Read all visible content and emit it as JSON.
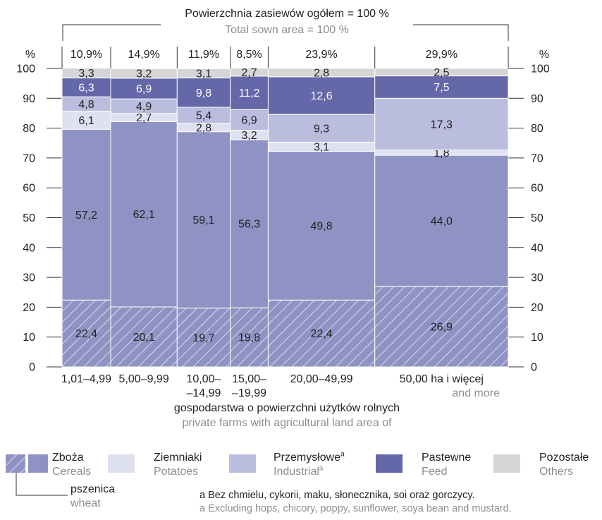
{
  "chart_data": {
    "type": "bar",
    "title": "Powierzchnia zasiewów ogółem = 100 %",
    "subtitle": "Total sown area = 100 %",
    "ylabel_left": "%",
    "ylabel_right": "%",
    "ylim": [
      0,
      100
    ],
    "yticks": [
      "0",
      "10",
      "20",
      "30",
      "40",
      "50",
      "60",
      "70",
      "80",
      "90",
      "100"
    ],
    "xlabel": "gospodarstwa o powierzchni użytków rolnych",
    "xlabel_en": "private farms with agricultural land area of",
    "categories": [
      {
        "l1": "1,01–4,99",
        "l2": "",
        "share": 10.9,
        "share_label": "10,9%"
      },
      {
        "l1": "5,00–9,99",
        "l2": "",
        "share": 14.9,
        "share_label": "14,9%"
      },
      {
        "l1": "10,00–",
        "l2": "–14,99",
        "share": 11.9,
        "share_label": "11,9%"
      },
      {
        "l1": "15,00–",
        "l2": "–19,99",
        "share": 8.5,
        "share_label": "8,5%"
      },
      {
        "l1": "20,00–49,99",
        "l2": "",
        "share": 23.9,
        "share_label": "23,9%"
      },
      {
        "l1": "50,00 ha i więcej",
        "l2": "and more",
        "share": 29.9,
        "share_label": "29,9%"
      }
    ],
    "series": [
      {
        "name": "pszenica",
        "name_en": "wheat",
        "color": "#8f93c4",
        "hatch": true,
        "values": [
          22.4,
          20.1,
          19.7,
          19.8,
          22.4,
          26.9
        ],
        "labels": [
          "22,4",
          "20,1",
          "19,7",
          "19,8",
          "22,4",
          "26,9"
        ]
      },
      {
        "name": "Zboża",
        "name_en": "Cereals",
        "color": "#8f93c4",
        "hatch": false,
        "values": [
          57.2,
          62.1,
          59.1,
          56.3,
          49.8,
          44.0
        ],
        "labels": [
          "57,2",
          "62,1",
          "59,1",
          "56,3",
          "49,8",
          "44,0"
        ]
      },
      {
        "name": "Ziemniaki",
        "name_en": "Potatoes",
        "color": "#dfe1f1",
        "hatch": false,
        "values": [
          6.1,
          2.7,
          2.8,
          3.2,
          3.1,
          1.8
        ],
        "labels": [
          "6,1",
          "2,7",
          "2,8",
          "3,2",
          "3,1",
          "1,8"
        ]
      },
      {
        "name": "Przemysłowe",
        "name_en": "Industrial",
        "color": "#babdde",
        "hatch": false,
        "values": [
          4.8,
          4.9,
          5.4,
          6.9,
          9.3,
          17.3
        ],
        "labels": [
          "4,8",
          "4,9",
          "5,4",
          "6,9",
          "9,3",
          "17,3"
        ]
      },
      {
        "name": "Pastewne",
        "name_en": "Feed",
        "color": "#6467a8",
        "hatch": false,
        "values": [
          6.3,
          6.9,
          9.8,
          11.2,
          12.6,
          7.5
        ],
        "labels": [
          "6,3",
          "6,9",
          "9,8",
          "11,2",
          "12,6",
          "7,5"
        ]
      },
      {
        "name": "Pozostałe",
        "name_en": "Others",
        "color": "#d5d5d5",
        "hatch": false,
        "values": [
          3.3,
          3.2,
          3.1,
          2.7,
          2.8,
          2.5
        ],
        "labels": [
          "3,3",
          "3,2",
          "3,1",
          "2,7",
          "2,8",
          "2,5"
        ]
      }
    ]
  },
  "legend": {
    "cereals": {
      "pl": "Zboża",
      "en": "Cereals"
    },
    "potatoes": {
      "pl": "Ziemniaki",
      "en": "Potatoes"
    },
    "industrial": {
      "pl": "Przemysłowe",
      "en": "Industrial",
      "sup": "a"
    },
    "feed": {
      "pl": "Pastewne",
      "en": "Feed"
    },
    "others": {
      "pl": "Pozostałe",
      "en": "Others"
    },
    "wheat": {
      "pl": "pszenica",
      "en": "wheat"
    }
  },
  "footnote": {
    "pl": "a  Bez chmielu, cykorii, maku, słonecznika, soi oraz gorczycy.",
    "en": "a  Excluding hops, chicory, poppy, sunflower, soya bean and mustard."
  }
}
